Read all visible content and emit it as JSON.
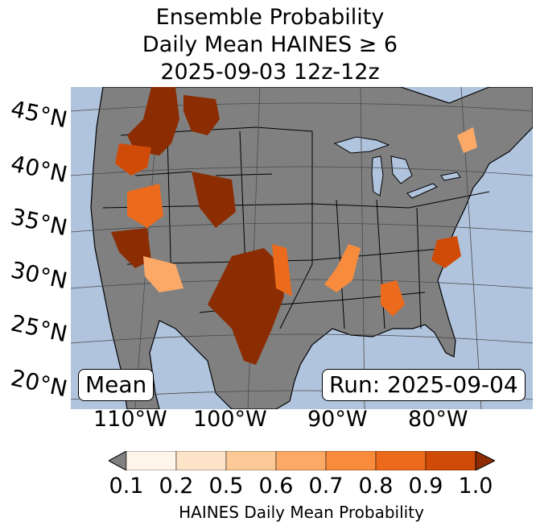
{
  "title": {
    "line1": "Ensemble Probability",
    "line2": "Daily Mean HAINES ≥ 6",
    "line3": "2025-09-03 12z-12z"
  },
  "map": {
    "region": "Continental United States",
    "latitude_labels": [
      "45°N",
      "40°N",
      "35°N",
      "30°N",
      "25°N",
      "20°N"
    ],
    "longitude_labels": [
      "110°W",
      "100°W",
      "90°W",
      "80°W"
    ],
    "colors": {
      "ocean": "#b0c4de",
      "land": "#808080",
      "borders": "#000000",
      "graticule": "#4a4a4a"
    },
    "probability_regions": [
      {
        "area": "Pacific Northwest / Northern Rockies",
        "level": 1.0
      },
      {
        "area": "Great Basin / Utah",
        "level": 1.0
      },
      {
        "area": "West Texas / New Mexico",
        "level": 1.0
      },
      {
        "area": "Desert Southwest",
        "level": 0.9
      },
      {
        "area": "Southeast / Georgia",
        "level": 0.8
      },
      {
        "area": "Carolinas",
        "level": 0.8
      },
      {
        "area": "Tennessee Valley",
        "level": 0.7
      },
      {
        "area": "Northeast / Maine",
        "level": 0.6
      }
    ]
  },
  "annotations": {
    "statistic": "Mean",
    "run": "Run: 2025-09-04"
  },
  "colorbar": {
    "label": "HAINES Daily Mean Probability",
    "ticks": [
      "0.1",
      "0.2",
      "0.5",
      "0.6",
      "0.7",
      "0.8",
      "0.9",
      "1.0"
    ],
    "colors": [
      "#fff4e9",
      "#fde3c8",
      "#fdc996",
      "#fca967",
      "#f98b3d",
      "#ec6a1c",
      "#d14b08",
      "#8b2c02"
    ],
    "under_color": "#808080",
    "over_color": "#8b2c02"
  }
}
